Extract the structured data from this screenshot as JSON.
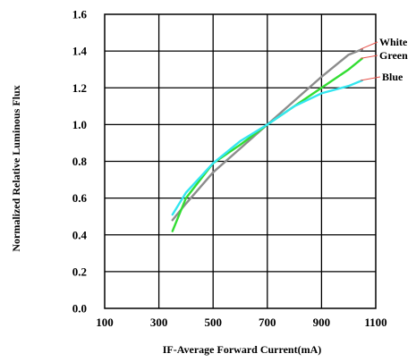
{
  "chart_data": {
    "type": "line",
    "title": "",
    "xlabel": "IF-Average Forward Current(mA)",
    "ylabel": "Normalized Relative Luminous Flux",
    "xlim": [
      100,
      1100
    ],
    "ylim": [
      0.0,
      1.6
    ],
    "x_ticks": [
      100,
      300,
      500,
      700,
      900,
      1100
    ],
    "y_ticks": [
      0.0,
      0.2,
      0.4,
      0.6,
      0.8,
      1.0,
      1.2,
      1.4,
      1.6
    ],
    "x_tick_labels": [
      "100",
      "300",
      "500",
      "700",
      "900",
      "1100"
    ],
    "y_tick_labels": [
      "0.0",
      "0.2",
      "0.4",
      "0.6",
      "0.8",
      "1.0",
      "1.2",
      "1.4",
      "1.6"
    ],
    "grid": true,
    "legend_placement": "right, labels pointing to line ends",
    "series": [
      {
        "name": "White",
        "color": "#8c8c8c",
        "x": [
          350,
          400,
          500,
          600,
          700,
          800,
          900,
          1000,
          1050
        ],
        "y": [
          0.48,
          0.57,
          0.74,
          0.87,
          1.0,
          1.13,
          1.26,
          1.38,
          1.41
        ]
      },
      {
        "name": "Green",
        "color": "#33dd33",
        "x": [
          350,
          400,
          500,
          600,
          700,
          800,
          900,
          1000,
          1050
        ],
        "y": [
          0.42,
          0.6,
          0.79,
          0.89,
          1.0,
          1.1,
          1.2,
          1.3,
          1.36
        ]
      },
      {
        "name": "Blue",
        "color": "#33e6f0",
        "x": [
          350,
          400,
          500,
          600,
          700,
          800,
          900,
          1000,
          1050
        ],
        "y": [
          0.51,
          0.63,
          0.79,
          0.91,
          1.0,
          1.1,
          1.17,
          1.21,
          1.24
        ]
      }
    ]
  }
}
